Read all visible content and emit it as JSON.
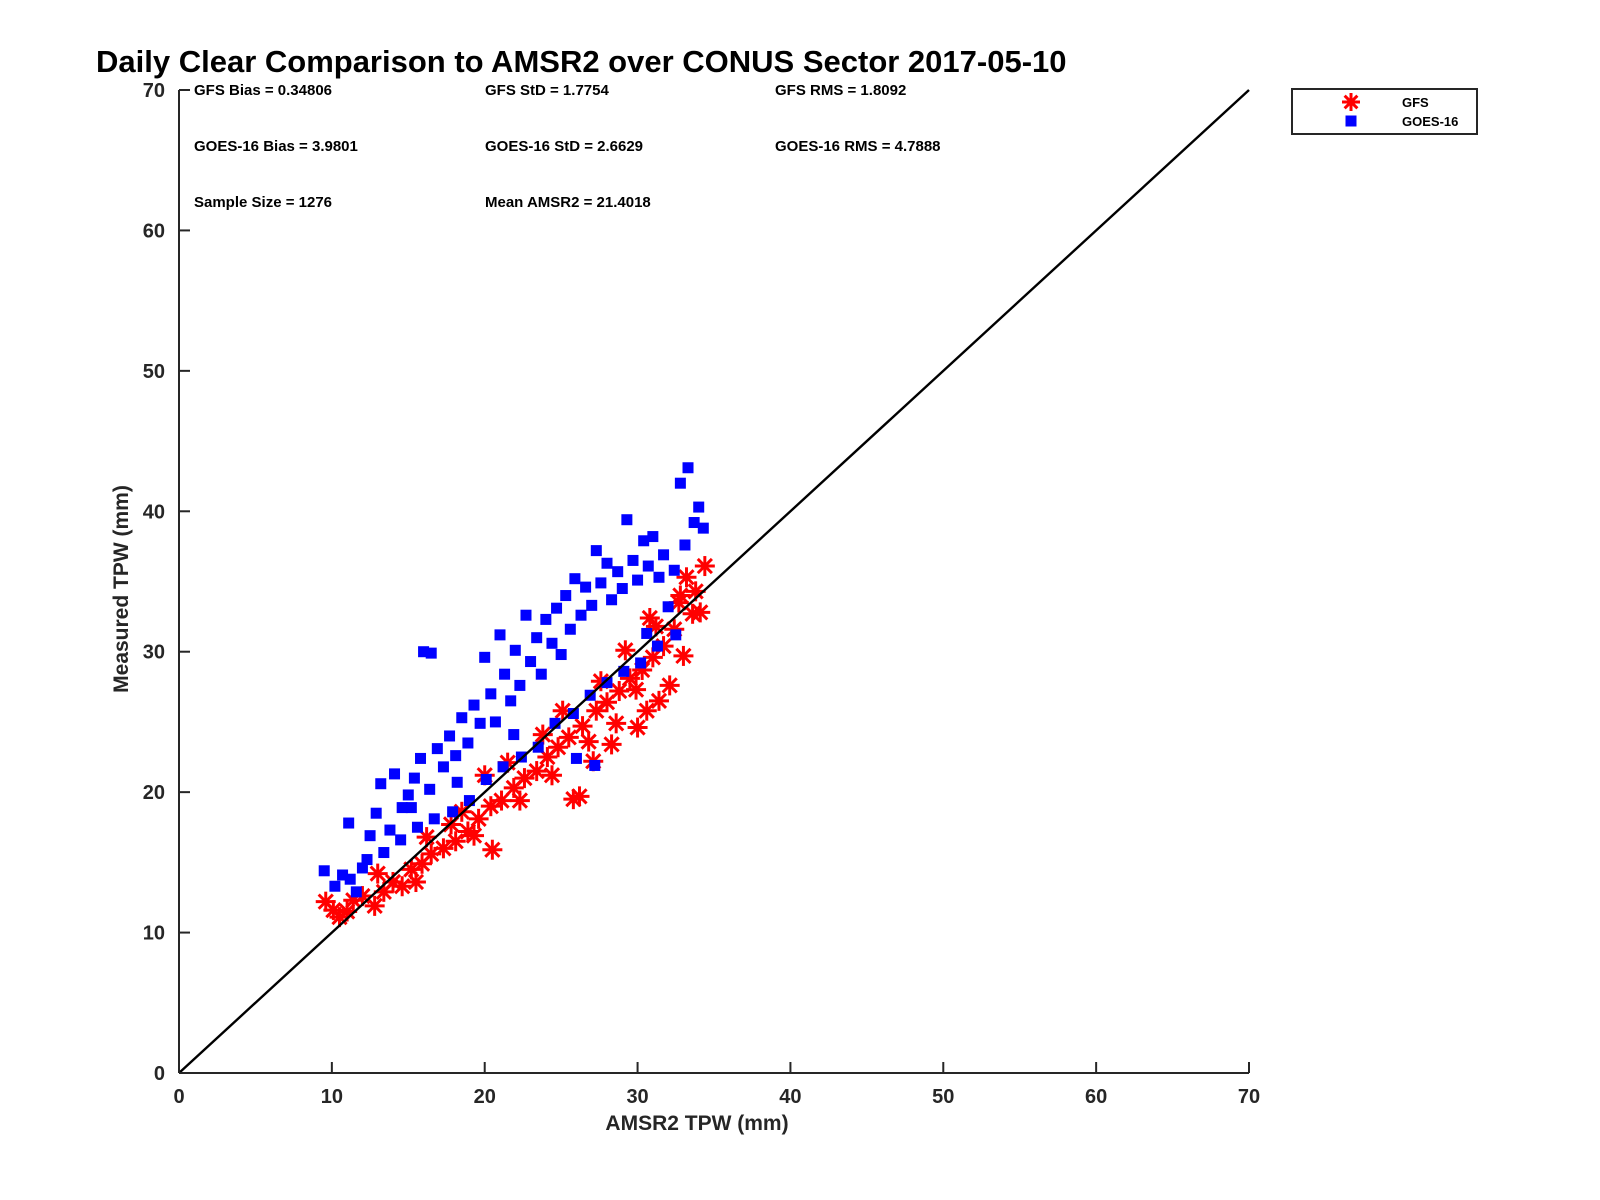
{
  "chart_data": {
    "type": "scatter",
    "title": "Daily Clear Comparison to AMSR2 over CONUS Sector 2017-05-10",
    "xlabel": "AMSR2 TPW (mm)",
    "ylabel": "Measured TPW (mm)",
    "xlim": [
      0,
      70
    ],
    "ylim": [
      0,
      70
    ],
    "xticks": [
      "0",
      "10",
      "20",
      "30",
      "40",
      "50",
      "60",
      "70"
    ],
    "yticks": [
      "0",
      "10",
      "20",
      "30",
      "40",
      "50",
      "60",
      "70"
    ],
    "grid": false,
    "legend_position": "outside-top-right",
    "reference_line": {
      "x": [
        0,
        70
      ],
      "y": [
        0,
        70
      ],
      "color": "#000000"
    },
    "stats": [
      [
        "GFS Bias = 0.34806",
        "GFS StD = 1.7754",
        "GFS RMS = 1.8092"
      ],
      [
        "GOES-16 Bias = 3.9801",
        "GOES-16 StD = 2.6629",
        "GOES-16 RMS = 4.7888"
      ],
      [
        "Sample Size = 1276",
        "Mean AMSR2 = 21.4018"
      ]
    ],
    "series": [
      {
        "name": "GFS",
        "marker": "asterisk",
        "color": "#ff0000",
        "points": [
          [
            9.6,
            12.2
          ],
          [
            10.1,
            11.6
          ],
          [
            10.5,
            11.1
          ],
          [
            11.0,
            11.5
          ],
          [
            11.4,
            12.3
          ],
          [
            12.0,
            12.6
          ],
          [
            12.8,
            11.9
          ],
          [
            13.4,
            12.9
          ],
          [
            14.0,
            13.6
          ],
          [
            14.6,
            13.3
          ],
          [
            15.2,
            14.5
          ],
          [
            15.9,
            14.9
          ],
          [
            16.5,
            15.6
          ],
          [
            17.3,
            16.0
          ],
          [
            18.1,
            16.5
          ],
          [
            18.9,
            17.2
          ],
          [
            19.6,
            18.1
          ],
          [
            20.4,
            19.0
          ],
          [
            20.5,
            15.9
          ],
          [
            21.1,
            19.4
          ],
          [
            21.9,
            20.3
          ],
          [
            22.6,
            21.0
          ],
          [
            23.4,
            21.5
          ],
          [
            24.1,
            22.5
          ],
          [
            24.8,
            23.2
          ],
          [
            25.5,
            23.9
          ],
          [
            25.8,
            19.5
          ],
          [
            26.2,
            19.7
          ],
          [
            26.4,
            24.7
          ],
          [
            27.1,
            22.2
          ],
          [
            27.3,
            25.8
          ],
          [
            28.0,
            26.4
          ],
          [
            28.3,
            23.4
          ],
          [
            28.8,
            27.2
          ],
          [
            29.5,
            28.1
          ],
          [
            30.0,
            24.6
          ],
          [
            30.3,
            28.7
          ],
          [
            30.6,
            25.8
          ],
          [
            31.0,
            29.6
          ],
          [
            31.4,
            26.5
          ],
          [
            31.7,
            30.4
          ],
          [
            32.1,
            27.6
          ],
          [
            32.4,
            31.6
          ],
          [
            32.7,
            33.5
          ],
          [
            33.0,
            29.7
          ],
          [
            33.2,
            35.3
          ],
          [
            33.6,
            32.7
          ],
          [
            34.1,
            32.8
          ],
          [
            34.4,
            36.1
          ],
          [
            33.8,
            34.3
          ],
          [
            13.0,
            14.2
          ],
          [
            15.5,
            13.6
          ],
          [
            17.8,
            17.7
          ],
          [
            19.3,
            16.9
          ],
          [
            22.3,
            19.4
          ],
          [
            24.4,
            21.2
          ],
          [
            26.8,
            23.6
          ],
          [
            28.6,
            24.9
          ],
          [
            29.9,
            27.3
          ],
          [
            31.2,
            31.8
          ],
          [
            16.2,
            16.8
          ],
          [
            18.5,
            18.6
          ],
          [
            21.5,
            22.1
          ],
          [
            23.8,
            24.1
          ],
          [
            25.1,
            25.8
          ],
          [
            27.6,
            27.9
          ],
          [
            29.2,
            30.1
          ],
          [
            30.8,
            32.4
          ],
          [
            32.8,
            34.0
          ],
          [
            20.0,
            21.2
          ]
        ]
      },
      {
        "name": "GOES-16",
        "marker": "square",
        "color": "#0000ff",
        "points": [
          [
            9.5,
            14.4
          ],
          [
            10.2,
            13.3
          ],
          [
            10.7,
            14.1
          ],
          [
            11.1,
            17.8
          ],
          [
            11.6,
            12.9
          ],
          [
            12.0,
            14.6
          ],
          [
            12.5,
            16.9
          ],
          [
            12.9,
            18.5
          ],
          [
            13.2,
            20.6
          ],
          [
            13.8,
            17.3
          ],
          [
            14.1,
            21.3
          ],
          [
            14.6,
            18.9
          ],
          [
            15.0,
            19.8
          ],
          [
            15.4,
            21.0
          ],
          [
            15.8,
            22.4
          ],
          [
            16.0,
            30.0
          ],
          [
            16.5,
            29.9
          ],
          [
            16.4,
            20.2
          ],
          [
            16.9,
            23.1
          ],
          [
            17.3,
            21.8
          ],
          [
            17.7,
            24.0
          ],
          [
            18.1,
            22.6
          ],
          [
            18.5,
            25.3
          ],
          [
            18.9,
            23.5
          ],
          [
            19.3,
            26.2
          ],
          [
            19.7,
            24.9
          ],
          [
            20.0,
            29.6
          ],
          [
            20.4,
            27.0
          ],
          [
            20.7,
            25.0
          ],
          [
            21.0,
            31.2
          ],
          [
            21.3,
            28.4
          ],
          [
            21.7,
            26.5
          ],
          [
            22.0,
            30.1
          ],
          [
            22.3,
            27.6
          ],
          [
            22.7,
            32.6
          ],
          [
            23.0,
            29.3
          ],
          [
            23.4,
            31.0
          ],
          [
            23.7,
            28.4
          ],
          [
            24.0,
            32.3
          ],
          [
            24.4,
            30.6
          ],
          [
            24.7,
            33.1
          ],
          [
            25.0,
            29.8
          ],
          [
            25.3,
            34.0
          ],
          [
            25.6,
            31.6
          ],
          [
            25.9,
            35.2
          ],
          [
            26.3,
            32.6
          ],
          [
            26.6,
            34.6
          ],
          [
            27.0,
            33.3
          ],
          [
            27.3,
            37.2
          ],
          [
            27.6,
            34.9
          ],
          [
            28.0,
            36.3
          ],
          [
            28.3,
            33.7
          ],
          [
            28.7,
            35.7
          ],
          [
            29.0,
            34.5
          ],
          [
            29.3,
            39.4
          ],
          [
            29.7,
            36.5
          ],
          [
            30.0,
            35.1
          ],
          [
            30.4,
            37.9
          ],
          [
            30.7,
            36.1
          ],
          [
            31.0,
            38.2
          ],
          [
            31.4,
            35.3
          ],
          [
            31.7,
            36.9
          ],
          [
            32.0,
            33.2
          ],
          [
            32.4,
            35.8
          ],
          [
            32.8,
            42.0
          ],
          [
            33.3,
            43.1
          ],
          [
            33.7,
            39.2
          ],
          [
            34.0,
            40.3
          ],
          [
            34.3,
            38.8
          ],
          [
            33.1,
            37.6
          ],
          [
            32.5,
            31.2
          ],
          [
            31.3,
            30.4
          ],
          [
            30.2,
            29.2
          ],
          [
            29.1,
            28.6
          ],
          [
            28.0,
            27.8
          ],
          [
            26.9,
            26.9
          ],
          [
            25.8,
            25.6
          ],
          [
            24.6,
            24.9
          ],
          [
            23.5,
            23.2
          ],
          [
            22.4,
            22.5
          ],
          [
            21.2,
            21.8
          ],
          [
            20.1,
            20.9
          ],
          [
            19.0,
            19.4
          ],
          [
            17.9,
            18.6
          ],
          [
            16.7,
            18.1
          ],
          [
            15.6,
            17.5
          ],
          [
            14.5,
            16.6
          ],
          [
            13.4,
            15.7
          ],
          [
            12.3,
            15.2
          ],
          [
            11.2,
            13.8
          ],
          [
            27.2,
            21.9
          ],
          [
            26.0,
            22.4
          ],
          [
            30.6,
            31.3
          ],
          [
            21.9,
            24.1
          ],
          [
            18.2,
            20.7
          ],
          [
            15.2,
            18.9
          ]
        ]
      }
    ]
  }
}
